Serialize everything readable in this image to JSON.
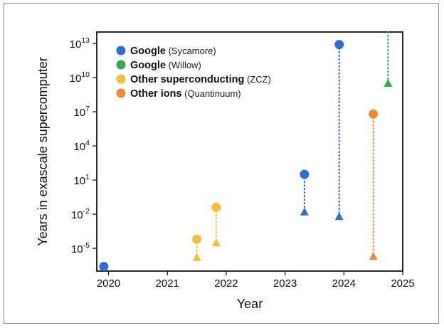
{
  "chart_data": {
    "type": "scatter",
    "xlabel": "Year",
    "ylabel": "Years in exascale supercomputer",
    "yscale": "log",
    "xlim": [
      2019.8,
      2025
    ],
    "ylim": [
      -7,
      14
    ],
    "x_ticks": [
      {
        "value": 2020,
        "label": "2020"
      },
      {
        "value": 2021,
        "label": "2021"
      },
      {
        "value": 2022,
        "label": "2022"
      },
      {
        "value": 2023,
        "label": "2023"
      },
      {
        "value": 2024,
        "label": "2024"
      },
      {
        "value": 2025,
        "label": "2025"
      }
    ],
    "y_ticks": [
      {
        "exp": 13,
        "base": "10",
        "power": "13"
      },
      {
        "exp": 10,
        "base": "10",
        "power": "10"
      },
      {
        "exp": 7,
        "base": "10",
        "power": "7"
      },
      {
        "exp": 4,
        "base": "10",
        "power": "4"
      },
      {
        "exp": 1,
        "base": "10",
        "power": "1"
      },
      {
        "exp": -2,
        "base": "10",
        "power": "-2"
      },
      {
        "exp": -5,
        "base": "10",
        "power": "-5"
      }
    ],
    "legend_position": "top-left",
    "series": [
      {
        "name": "Google",
        "detail": "(Sycamore)",
        "color": "#2e6fd6",
        "points": [
          {
            "x": 2019.92,
            "circle": -6.6
          },
          {
            "x": 2023.33,
            "circle": 1.5,
            "triangle": -1.8
          },
          {
            "x": 2023.92,
            "circle": 12.9,
            "triangle": -2.2
          }
        ]
      },
      {
        "name": "Google",
        "detail": "(Willow)",
        "color": "#38a853",
        "points": [
          {
            "x": 2024.75,
            "triangle": 9.5,
            "line_top": 15
          }
        ]
      },
      {
        "name": "Other superconducting",
        "detail": "(ZCZ)",
        "color": "#f3bf3a",
        "points": [
          {
            "x": 2021.5,
            "circle": -4.2,
            "triangle": -5.8
          },
          {
            "x": 2021.83,
            "circle": -1.4,
            "triangle": -4.5
          }
        ]
      },
      {
        "name": "Other ions",
        "detail": "(Quantinuum)",
        "color": "#ef8a32",
        "points": [
          {
            "x": 2024.5,
            "circle": 6.8,
            "triangle": -5.7
          }
        ]
      }
    ]
  }
}
